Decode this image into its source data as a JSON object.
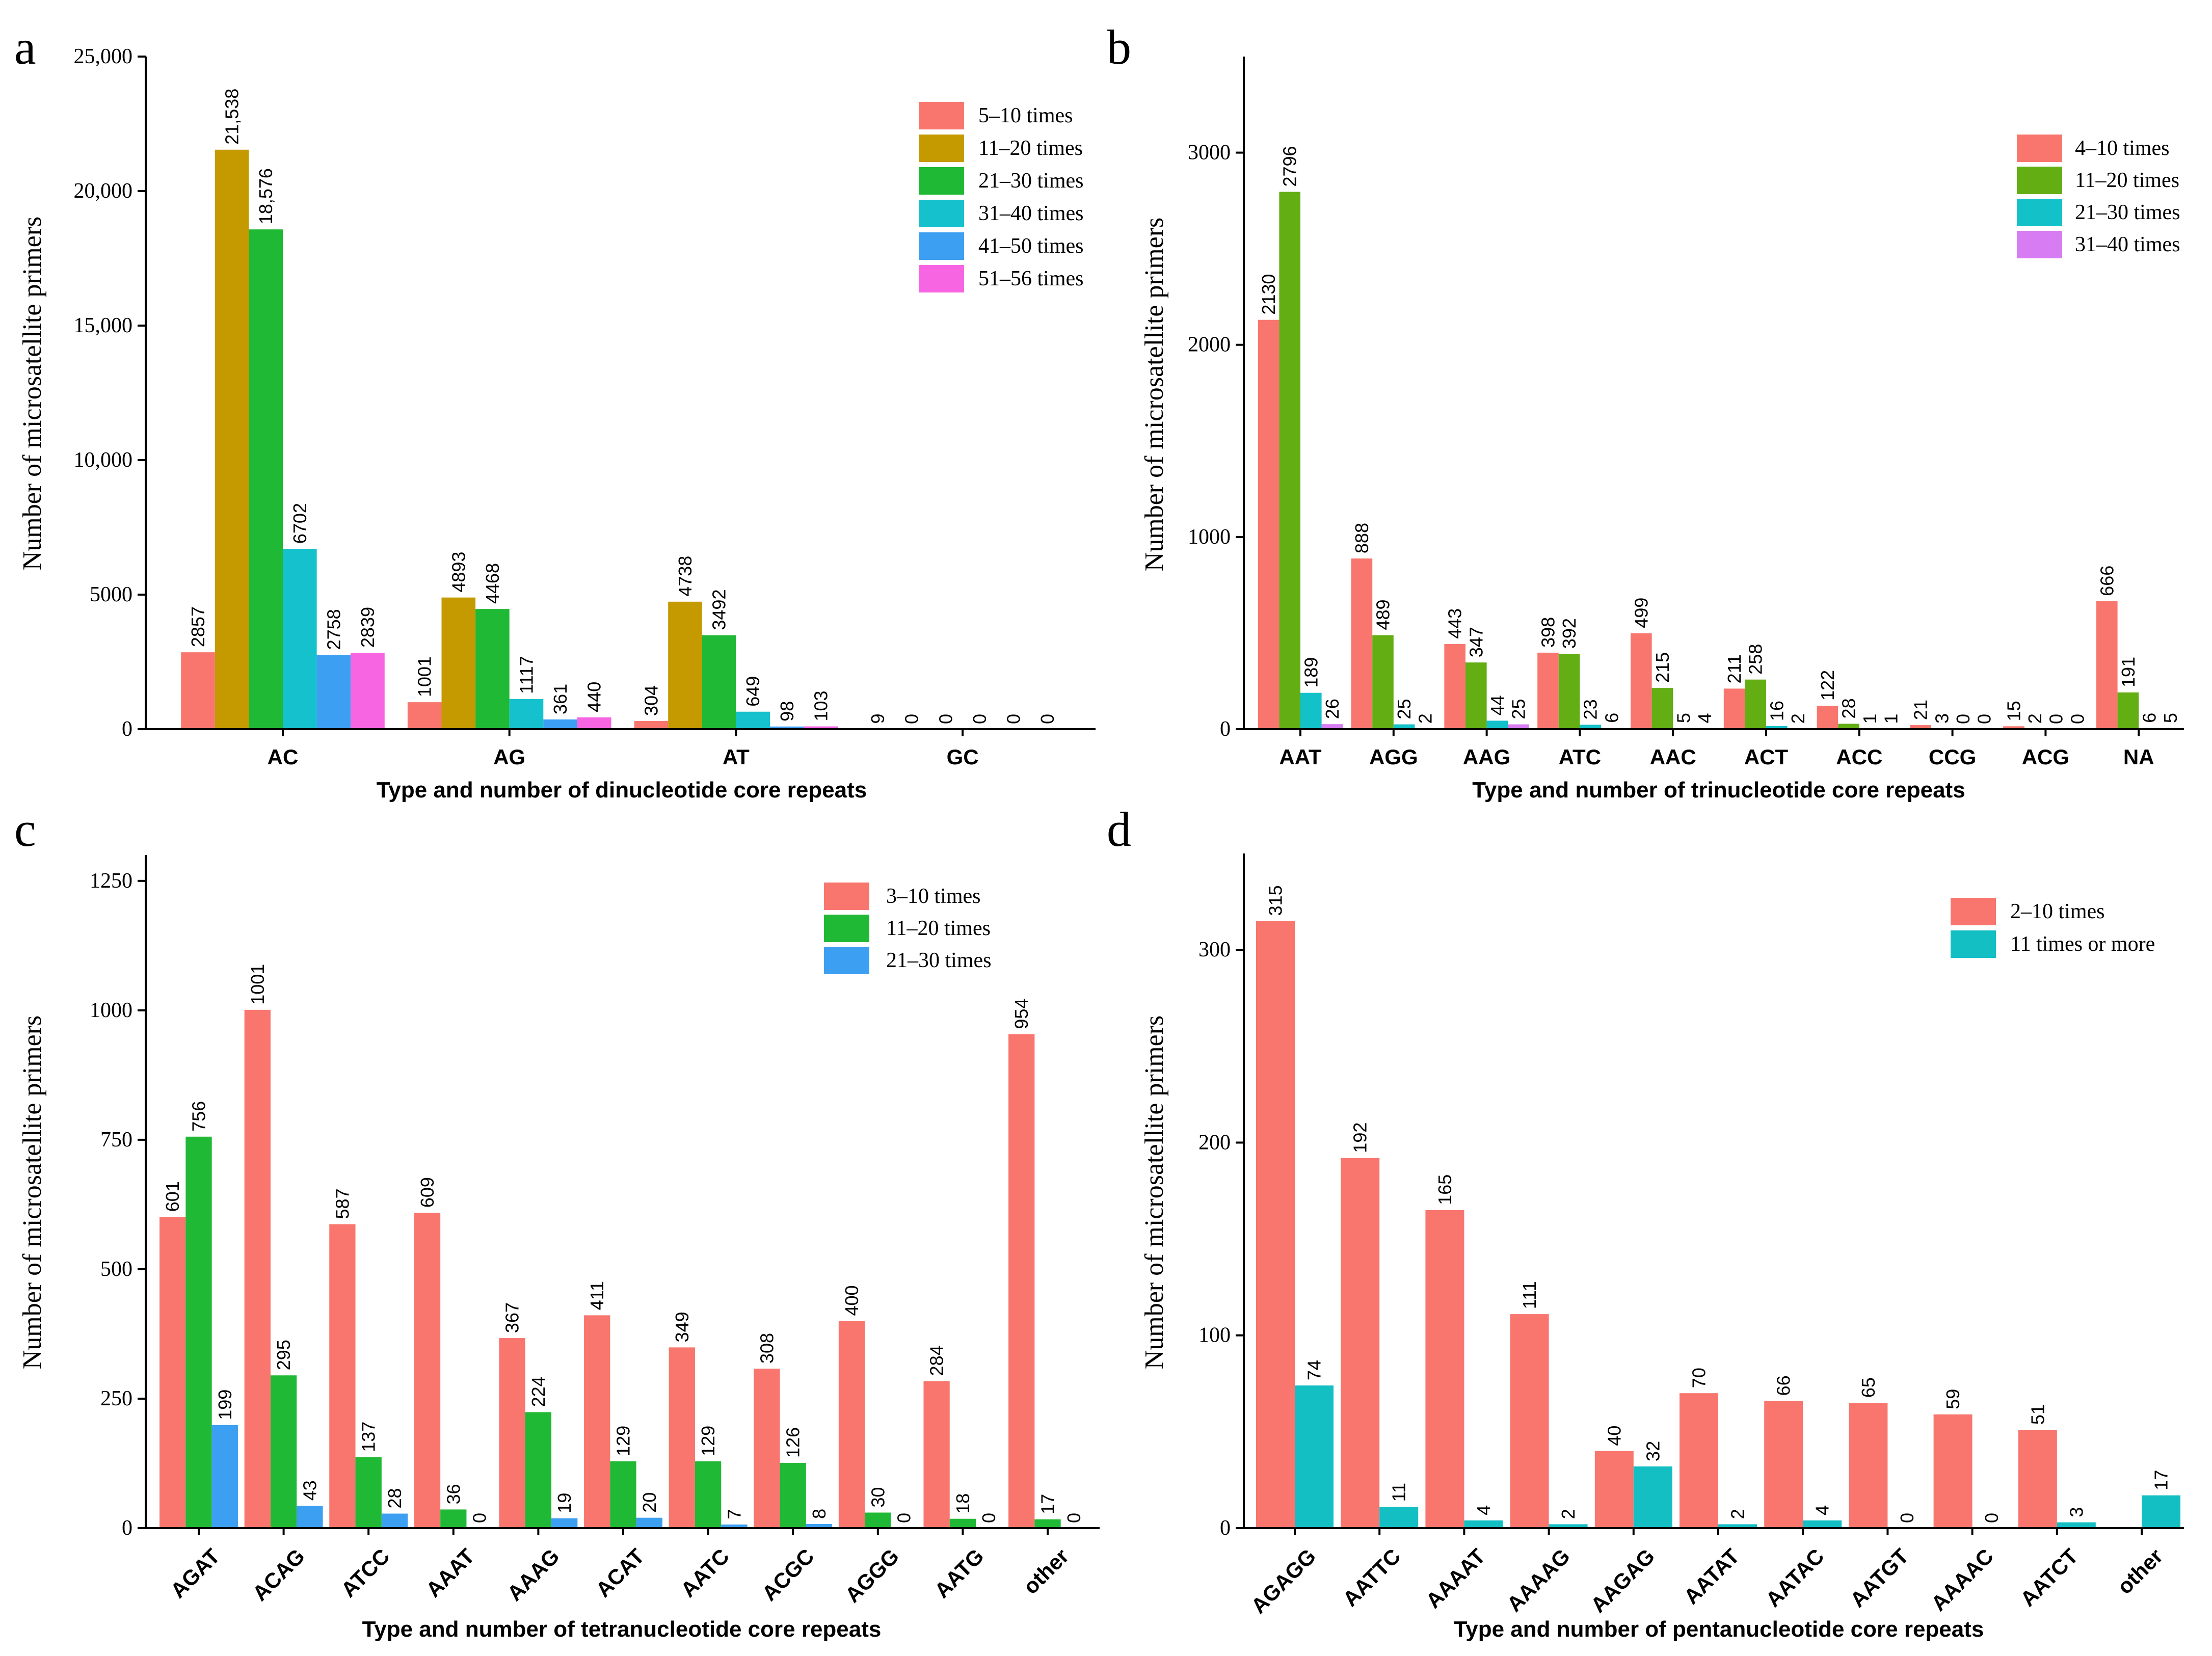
{
  "chart_data": [
    {
      "panel": "a",
      "type": "bar",
      "title": "",
      "xlabel": "Type and number of dinucleotide core repeats",
      "ylabel": "Number of microsatellite primers",
      "ylim": [
        0,
        25000
      ],
      "yticks": [
        0,
        5000,
        10000,
        15000,
        20000,
        25000
      ],
      "ytick_labels": [
        "0",
        "5000",
        "10,000",
        "15,000",
        "20,000",
        "25,000"
      ],
      "legend": "top-right",
      "categories": [
        "AC",
        "AG",
        "AT",
        "GC"
      ],
      "series": [
        {
          "name": "5–10 times",
          "color": "#F8766D",
          "values": [
            2857,
            1001,
            304,
            9
          ],
          "labels": [
            "2857",
            "1001",
            "304",
            "9"
          ]
        },
        {
          "name": "11–20 times",
          "color": "#C49A00",
          "values": [
            21538,
            4893,
            4738,
            0
          ],
          "labels": [
            "21,538",
            "4893",
            "4738",
            "0"
          ]
        },
        {
          "name": "21–30 times",
          "color": "#20B935",
          "values": [
            18576,
            4468,
            3492,
            0
          ],
          "labels": [
            "18,576",
            "4468",
            "3492",
            "0"
          ]
        },
        {
          "name": "31–40 times",
          "color": "#14C1CC",
          "values": [
            6702,
            1117,
            649,
            0
          ],
          "labels": [
            "6702",
            "1117",
            "649",
            "0"
          ]
        },
        {
          "name": "41–50 times",
          "color": "#3C9FF2",
          "values": [
            2758,
            361,
            98,
            0
          ],
          "labels": [
            "2758",
            "361",
            "98",
            "0"
          ]
        },
        {
          "name": "51–56 times",
          "color": "#F765E2",
          "values": [
            2839,
            440,
            103,
            0
          ],
          "labels": [
            "2839",
            "440",
            "103",
            "0"
          ]
        }
      ]
    },
    {
      "panel": "b",
      "type": "bar",
      "title": "",
      "xlabel": "Type and number of trinucleotide core repeats",
      "ylabel": "Number of microsatellite primers",
      "ylim": [
        0,
        3500
      ],
      "yticks": [
        0,
        1000,
        2000,
        3000
      ],
      "legend": "top-right",
      "categories": [
        "AAT",
        "AGG",
        "AAG",
        "ATC",
        "AAC",
        "ACT",
        "ACC",
        "CCG",
        "ACG",
        "NA"
      ],
      "series": [
        {
          "name": "4–10 times",
          "color": "#F8766D",
          "values": [
            2130,
            888,
            443,
            398,
            499,
            211,
            122,
            21,
            15,
            666
          ]
        },
        {
          "name": "11–20 times",
          "color": "#62AE13",
          "values": [
            2796,
            489,
            347,
            392,
            215,
            258,
            28,
            3,
            2,
            191
          ]
        },
        {
          "name": "21–30 times",
          "color": "#13C1C9",
          "values": [
            189,
            25,
            44,
            23,
            5,
            16,
            1,
            0,
            0,
            6
          ]
        },
        {
          "name": "31–40 times",
          "color": "#D77CF2",
          "values": [
            26,
            2,
            25,
            6,
            4,
            2,
            1,
            0,
            0,
            5
          ]
        }
      ]
    },
    {
      "panel": "c",
      "type": "bar",
      "title": "",
      "xlabel": "Type and number of tetranucleotide core repeats",
      "ylabel": "Number of microsatellite primers",
      "ylim": [
        0,
        1300
      ],
      "yticks": [
        0,
        250,
        500,
        750,
        1000,
        1250
      ],
      "legend": "top-right",
      "categories": [
        "AGAT",
        "ACAG",
        "ATCC",
        "AAAT",
        "AAAG",
        "ACAT",
        "AATC",
        "ACGC",
        "AGGG",
        "AATG",
        "other"
      ],
      "series": [
        {
          "name": "3–10 times",
          "color": "#F8766D",
          "values": [
            601,
            1001,
            587,
            609,
            367,
            411,
            349,
            308,
            400,
            284,
            954
          ]
        },
        {
          "name": "11–20 times",
          "color": "#20B935",
          "values": [
            756,
            295,
            137,
            36,
            224,
            129,
            129,
            126,
            30,
            18,
            17
          ]
        },
        {
          "name": "21–30 times",
          "color": "#3C9FF2",
          "values": [
            199,
            43,
            28,
            0,
            19,
            20,
            7,
            8,
            0,
            0,
            0
          ]
        }
      ]
    },
    {
      "panel": "d",
      "type": "bar",
      "title": "",
      "xlabel": "Type and number of pentanucleotide core repeats",
      "ylabel": "Number of microsatellite primers",
      "ylim": [
        0,
        350
      ],
      "yticks": [
        0,
        100,
        200,
        300
      ],
      "legend": "top-right",
      "categories": [
        "AGAGG",
        "AATTC",
        "AAAAT",
        "AAAAG",
        "AAGAG",
        "AATAT",
        "AATAC",
        "AATGT",
        "AAAAC",
        "AATCT",
        "other"
      ],
      "series": [
        {
          "name": "2–10 times",
          "color": "#F8766D",
          "values": [
            315,
            192,
            165,
            111,
            40,
            70,
            66,
            65,
            59,
            51,
            null
          ]
        },
        {
          "name": "11 times or more",
          "color": "#14BFC4",
          "values": [
            74,
            11,
            4,
            2,
            32,
            2,
            4,
            0,
            0,
            3,
            17
          ]
        }
      ]
    }
  ]
}
